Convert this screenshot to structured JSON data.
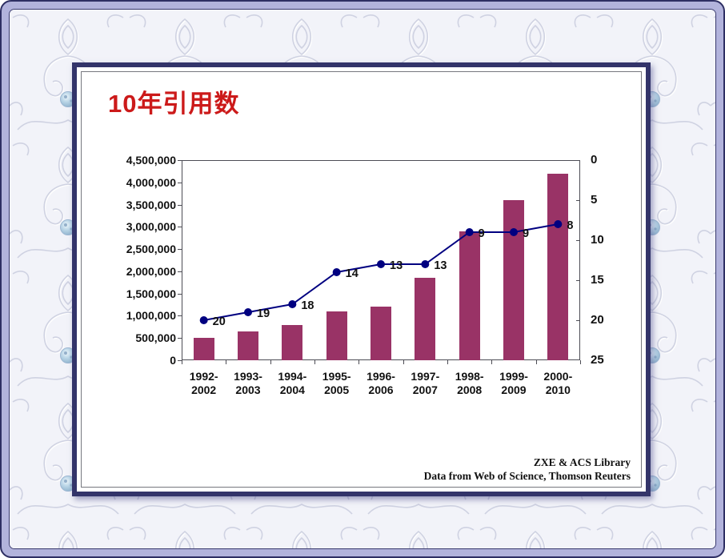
{
  "slide": {
    "title": "10年引用数",
    "footer_line1": "ZXE & ACS Library",
    "footer_line2": "Data from Web of Science, Thomson Reuters"
  },
  "chart_data": {
    "type": "bar",
    "title": "10年引用数",
    "categories": [
      "1992-2002",
      "1993-2003",
      "1994-2004",
      "1995-2005",
      "1996-2006",
      "1997-2007",
      "1998-2008",
      "1999-2009",
      "2000-2010"
    ],
    "series": [
      {
        "type": "bar",
        "axis": "left",
        "color": "#993366",
        "values": [
          500000,
          650000,
          800000,
          1100000,
          1200000,
          1850000,
          2900000,
          3600000,
          4200000
        ]
      },
      {
        "type": "line",
        "axis": "right",
        "color": "#000080",
        "values": [
          20,
          19,
          18,
          14,
          13,
          13,
          9,
          9,
          8
        ],
        "point_labels": [
          "20",
          "19",
          "18",
          "14",
          "13",
          "13",
          "9",
          "9",
          "8"
        ]
      }
    ],
    "left_axis": {
      "min": 0,
      "max": 4500000,
      "step": 500000,
      "tick_labels_top_to_bottom": [
        "4,500,000",
        "4,000,000",
        "3,500,000",
        "3,000,000",
        "2,500,000",
        "2,000,000",
        "1,500,000",
        "1,000,000",
        "500,000",
        "0"
      ]
    },
    "right_axis": {
      "min": 0,
      "max": 25,
      "step": 5,
      "inverted": true,
      "tick_labels_top_to_bottom": [
        "0",
        "5",
        "10",
        "15",
        "20",
        "25"
      ]
    },
    "grid": false,
    "legend": "none"
  },
  "colors": {
    "bar_fill": "#993366",
    "line_stroke": "#000080",
    "title_red": "#cc1a1a",
    "frame_navy": "#33346a",
    "frame_lavender": "#b2b3dc",
    "label_text": "#111111"
  }
}
